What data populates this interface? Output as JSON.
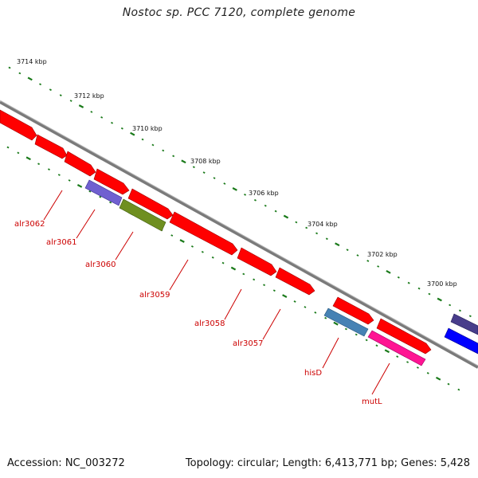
{
  "header": {
    "title": "Nostoc sp. PCC 7120, complete genome"
  },
  "footer": {
    "accession": "Accession: NC_003272",
    "summary": "Topology: circular; Length: 6,413,771 bp; Genes: 5,428"
  },
  "scale": {
    "ticks": [
      {
        "label": "3714 kbp"
      },
      {
        "label": "3712 kbp"
      },
      {
        "label": "3710 kbp"
      },
      {
        "label": "3708 kbp"
      },
      {
        "label": "3706 kbp"
      },
      {
        "label": "3704 kbp"
      },
      {
        "label": "3702 kbp"
      },
      {
        "label": "3700 kbp"
      }
    ]
  },
  "genes": [
    {
      "label": "alr3062"
    },
    {
      "label": "alr3061"
    },
    {
      "label": "alr3060"
    },
    {
      "label": "alr3059"
    },
    {
      "label": "alr3058"
    },
    {
      "label": "alr3057"
    },
    {
      "label": "hisD"
    },
    {
      "label": "mutL"
    }
  ],
  "colors": {
    "gene_arrow": "#ff0000",
    "gene_label": "#cc0000",
    "dot_track": "#1a7a1a",
    "backbone": "#808080",
    "feature_purple": "#7060d0",
    "feature_olive": "#6f8f20",
    "feature_steelblue": "#4682b4",
    "feature_pink": "#ff1493",
    "feature_blue": "#0000ff",
    "feature_darkslate": "#483d8b"
  }
}
